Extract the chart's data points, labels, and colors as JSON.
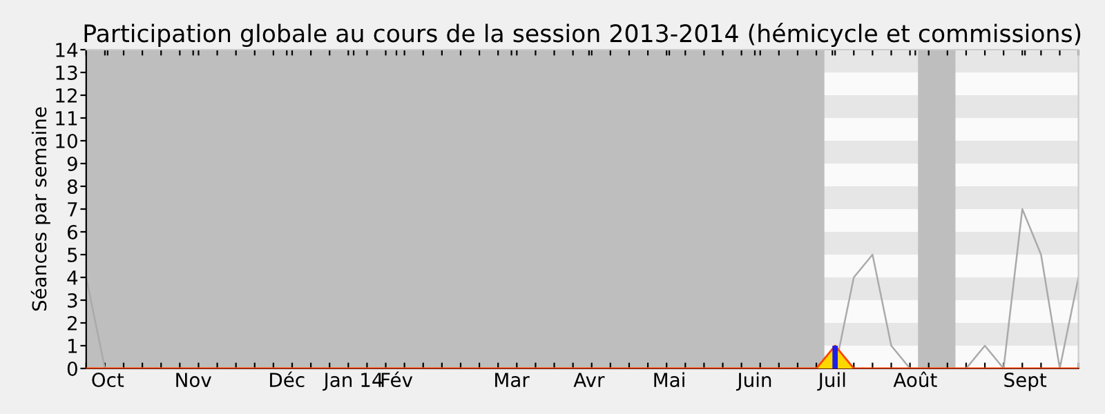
{
  "chart_data": {
    "type": "line",
    "title": "Participation globale au cours de la session 2013-2014 (hémicycle et commissions)",
    "ylabel": "Séances par semaine",
    "xlim": [
      "2013-09-23",
      "2014-09-29"
    ],
    "ylim": [
      0,
      14
    ],
    "yticks": [
      0,
      1,
      2,
      3,
      4,
      5,
      6,
      7,
      8,
      9,
      10,
      11,
      12,
      13,
      14
    ],
    "xticks": [
      {
        "value": "2013-10-01",
        "label": "Oct"
      },
      {
        "value": "2013-11-02",
        "label": "Nov"
      },
      {
        "value": "2013-12-07",
        "label": "Déc"
      },
      {
        "value": "2014-01-01",
        "label": "Jan 14"
      },
      {
        "value": "2014-01-17",
        "label": "Fév"
      },
      {
        "value": "2014-03-01",
        "label": "Mar"
      },
      {
        "value": "2014-03-30",
        "label": "Avr"
      },
      {
        "value": "2014-04-29",
        "label": "Mai"
      },
      {
        "value": "2014-05-31",
        "label": "Juin"
      },
      {
        "value": "2014-06-29",
        "label": "Juil"
      },
      {
        "value": "2014-07-30",
        "label": "Août"
      },
      {
        "value": "2014-09-09",
        "label": "Sept"
      },
      {
        "value": "2013-09-23",
        "label": null
      },
      {
        "value": "2013-09-30",
        "label": null
      },
      {
        "value": "2013-10-07",
        "label": null
      },
      {
        "value": "2013-10-14",
        "label": null
      },
      {
        "value": "2013-10-21",
        "label": null
      },
      {
        "value": "2013-10-28",
        "label": null
      },
      {
        "value": "2013-11-04",
        "label": null
      },
      {
        "value": "2013-11-11",
        "label": null
      },
      {
        "value": "2013-11-18",
        "label": null
      },
      {
        "value": "2013-11-25",
        "label": null
      },
      {
        "value": "2013-12-02",
        "label": null
      },
      {
        "value": "2013-12-09",
        "label": null
      },
      {
        "value": "2013-12-16",
        "label": null
      },
      {
        "value": "2013-12-23",
        "label": null
      },
      {
        "value": "2013-12-30",
        "label": null
      },
      {
        "value": "2014-01-06",
        "label": null
      },
      {
        "value": "2014-01-13",
        "label": null
      },
      {
        "value": "2014-01-20",
        "label": null
      },
      {
        "value": "2014-01-27",
        "label": null
      },
      {
        "value": "2014-02-03",
        "label": null
      },
      {
        "value": "2014-02-10",
        "label": null
      },
      {
        "value": "2014-02-17",
        "label": null
      },
      {
        "value": "2014-02-24",
        "label": null
      },
      {
        "value": "2014-03-03",
        "label": null
      },
      {
        "value": "2014-03-10",
        "label": null
      },
      {
        "value": "2014-03-17",
        "label": null
      },
      {
        "value": "2014-03-24",
        "label": null
      },
      {
        "value": "2014-03-31",
        "label": null
      },
      {
        "value": "2014-04-07",
        "label": null
      },
      {
        "value": "2014-04-14",
        "label": null
      },
      {
        "value": "2014-04-21",
        "label": null
      },
      {
        "value": "2014-04-28",
        "label": null
      },
      {
        "value": "2014-05-05",
        "label": null
      },
      {
        "value": "2014-05-12",
        "label": null
      },
      {
        "value": "2014-05-19",
        "label": null
      },
      {
        "value": "2014-05-26",
        "label": null
      },
      {
        "value": "2014-06-02",
        "label": null
      },
      {
        "value": "2014-06-09",
        "label": null
      },
      {
        "value": "2014-06-16",
        "label": null
      },
      {
        "value": "2014-06-23",
        "label": null
      },
      {
        "value": "2014-06-30",
        "label": null
      },
      {
        "value": "2014-07-07",
        "label": null
      },
      {
        "value": "2014-07-14",
        "label": null
      },
      {
        "value": "2014-07-21",
        "label": null
      },
      {
        "value": "2014-07-28",
        "label": null
      },
      {
        "value": "2014-08-04",
        "label": null
      },
      {
        "value": "2014-08-11",
        "label": null
      },
      {
        "value": "2014-08-18",
        "label": null
      },
      {
        "value": "2014-08-25",
        "label": null
      },
      {
        "value": "2014-09-01",
        "label": null
      },
      {
        "value": "2014-09-08",
        "label": null
      },
      {
        "value": "2014-09-15",
        "label": null
      },
      {
        "value": "2014-09-22",
        "label": null
      },
      {
        "value": "2014-09-29",
        "label": null
      }
    ],
    "bands": [
      {
        "axis": "x",
        "from": "2013-09-23",
        "to": "2014-06-26",
        "color": "#bebebe"
      },
      {
        "axis": "x",
        "from": "2014-07-31",
        "to": "2014-08-14",
        "color": "#bebebe"
      },
      {
        "axis": "y",
        "from": 1,
        "to": 2,
        "color": "#e6e6e6"
      },
      {
        "axis": "y",
        "from": 3,
        "to": 4,
        "color": "#e6e6e6"
      },
      {
        "axis": "y",
        "from": 5,
        "to": 6,
        "color": "#e6e6e6"
      },
      {
        "axis": "y",
        "from": 7,
        "to": 8,
        "color": "#e6e6e6"
      },
      {
        "axis": "y",
        "from": 9,
        "to": 10,
        "color": "#e6e6e6"
      },
      {
        "axis": "y",
        "from": 11,
        "to": 12,
        "color": "#e6e6e6"
      },
      {
        "axis": "y",
        "from": 13,
        "to": 14,
        "color": "#e6e6e6"
      }
    ],
    "series": [
      {
        "type": "area",
        "color": "#ffd700",
        "x": [
          "2013-09-23",
          "2014-06-23",
          "2014-06-30",
          "2014-07-07",
          "2014-09-29"
        ],
        "values": [
          0,
          0,
          1,
          0,
          0
        ]
      },
      {
        "type": "bar",
        "color": "#1e1ee6",
        "x": [
          "2014-06-30"
        ],
        "values": [
          1
        ]
      },
      {
        "color": "#aaaaaa",
        "x": [
          "2013-09-23",
          "2013-09-30",
          "2013-10-07",
          "2013-10-14",
          "2013-10-21",
          "2013-10-28",
          "2013-11-04",
          "2013-11-11",
          "2013-11-18",
          "2013-11-25",
          "2013-12-02",
          "2013-12-09",
          "2013-12-16",
          "2013-12-23",
          "2013-12-30",
          "2014-01-06",
          "2014-01-13",
          "2014-01-20",
          "2014-01-27",
          "2014-02-03",
          "2014-02-10",
          "2014-02-17",
          "2014-02-24",
          "2014-03-03",
          "2014-03-10",
          "2014-03-17",
          "2014-03-24",
          "2014-03-31",
          "2014-04-07",
          "2014-04-14",
          "2014-04-21",
          "2014-04-28",
          "2014-05-05",
          "2014-05-12",
          "2014-05-19",
          "2014-05-26",
          "2014-06-02",
          "2014-06-09",
          "2014-06-16",
          "2014-06-23",
          "2014-06-30",
          "2014-07-07",
          "2014-07-14",
          "2014-07-21",
          "2014-07-28",
          "2014-08-04",
          "2014-08-11",
          "2014-08-18",
          "2014-08-25",
          "2014-09-01",
          "2014-09-08",
          "2014-09-15",
          "2014-09-22",
          "2014-09-29"
        ],
        "values": [
          4,
          0,
          0,
          0,
          0,
          0,
          0,
          0,
          0,
          0,
          0,
          0,
          0,
          0,
          0,
          0,
          0,
          0,
          0,
          0,
          0,
          0,
          0,
          0,
          0,
          0,
          0,
          0,
          0,
          0,
          0,
          0,
          0,
          0,
          0,
          0,
          0,
          0,
          0,
          0,
          0,
          4,
          5,
          1,
          0,
          null,
          null,
          0,
          1,
          0,
          7,
          5,
          0,
          4
        ]
      }
    ]
  }
}
